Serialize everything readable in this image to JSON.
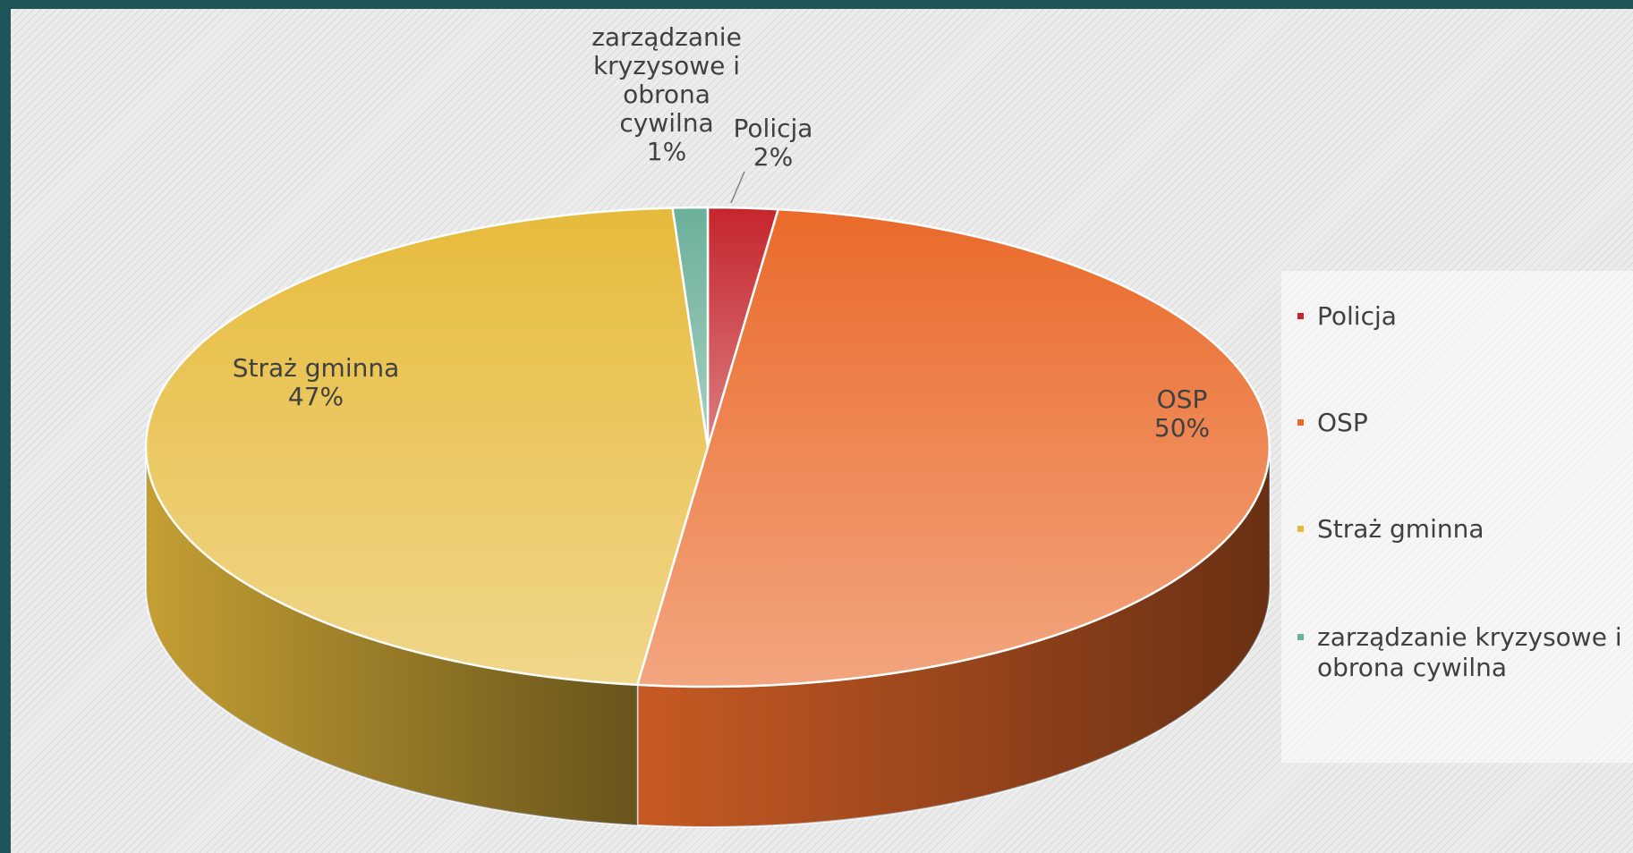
{
  "chart_data": {
    "type": "pie",
    "categories": [
      "Policja",
      "OSP",
      "Straż gminna",
      "zarządzanie kryzysowe i obrona cywilna"
    ],
    "values": [
      2,
      50,
      47,
      1
    ],
    "value_labels": [
      "2%",
      "50%",
      "47%",
      "1%"
    ],
    "colors": [
      "#c4262c",
      "#ea6a2a",
      "#e6bb3c",
      "#6bb09a"
    ],
    "legend": "right",
    "start_angle": 0,
    "direction": "clockwise",
    "three_d": true
  }
}
